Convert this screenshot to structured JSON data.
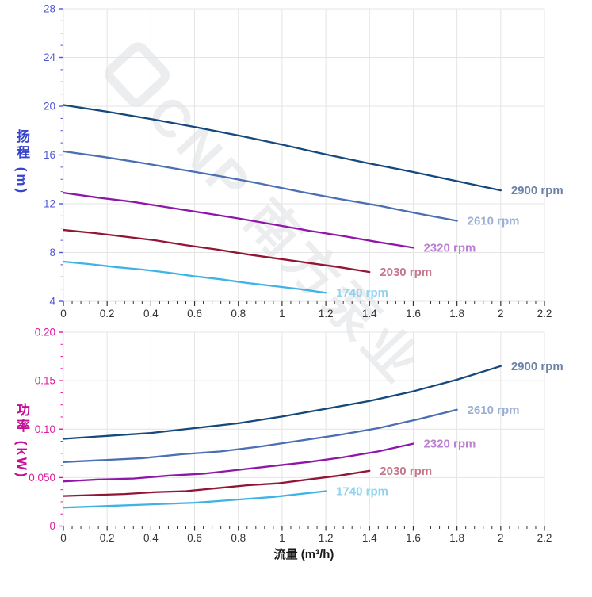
{
  "watermark": {
    "text": "CNP 南方泵业"
  },
  "x_axis_title": "流量 (m³/h)",
  "chart_data": [
    {
      "type": "line",
      "title": "pump head curves",
      "legend_position": "end-of-line labels",
      "grid": true,
      "x_axis": {
        "label": "流量 (m³/h)",
        "min": 0,
        "max": 2.2,
        "minor_step": 0.04,
        "tick_color": "#333333",
        "ticks": [
          [
            0,
            "0"
          ],
          [
            0.2,
            "0.2"
          ],
          [
            0.4,
            "0.4"
          ],
          [
            0.6,
            "0.6"
          ],
          [
            0.8,
            "0.8"
          ],
          [
            1,
            "1"
          ],
          [
            1.2,
            "1.2"
          ],
          [
            1.4,
            "1.4"
          ],
          [
            1.6,
            "1.6"
          ],
          [
            1.8,
            "1.8"
          ],
          [
            2,
            "2"
          ],
          [
            2.2,
            "2.2"
          ]
        ]
      },
      "y_axis": {
        "label": "扬程 (m)",
        "min": 4,
        "max": 28,
        "minor_step": 1,
        "label_color": "#3744cc",
        "tick_color": "#5056d6",
        "ticks": [
          [
            4,
            "4"
          ],
          [
            8,
            "8"
          ],
          [
            12,
            "12"
          ],
          [
            16,
            "16"
          ],
          [
            20,
            "20"
          ],
          [
            24,
            "24"
          ],
          [
            28,
            "28"
          ]
        ]
      },
      "series": [
        {
          "name": "2900 rpm",
          "color": "#16497b",
          "label_color": "#6a82a8",
          "x": [
            0,
            0.2,
            0.4,
            0.6,
            0.8,
            1.0,
            1.2,
            1.4,
            1.6,
            1.8,
            2.0
          ],
          "y": [
            20.1,
            19.55,
            18.95,
            18.3,
            17.6,
            16.85,
            16.05,
            15.3,
            14.6,
            13.85,
            13.1
          ]
        },
        {
          "name": "2610 rpm",
          "color": "#4a6fb2",
          "label_color": "#9cb0d4",
          "x": [
            0,
            0.18,
            0.36,
            0.54,
            0.72,
            0.9,
            1.08,
            1.26,
            1.44,
            1.62,
            1.8
          ],
          "y": [
            16.3,
            15.85,
            15.35,
            14.8,
            14.25,
            13.65,
            13.0,
            12.4,
            11.85,
            11.2,
            10.6
          ]
        },
        {
          "name": "2320 rpm",
          "color": "#8e17aa",
          "label_color": "#bb7fd2",
          "x": [
            0,
            0.16,
            0.32,
            0.48,
            0.64,
            0.8,
            0.96,
            1.12,
            1.28,
            1.44,
            1.6
          ],
          "y": [
            12.9,
            12.5,
            12.15,
            11.7,
            11.25,
            10.8,
            10.3,
            9.8,
            9.35,
            8.85,
            8.4
          ]
        },
        {
          "name": "2030 rpm",
          "color": "#931536",
          "label_color": "#c5788c",
          "x": [
            0,
            0.14,
            0.28,
            0.42,
            0.56,
            0.7,
            0.84,
            0.98,
            1.12,
            1.26,
            1.4
          ],
          "y": [
            9.85,
            9.6,
            9.3,
            9.0,
            8.6,
            8.25,
            7.85,
            7.5,
            7.15,
            6.8,
            6.4
          ]
        },
        {
          "name": "1740 rpm",
          "color": "#40b3e6",
          "label_color": "#8ed3f2",
          "x": [
            0,
            0.12,
            0.24,
            0.36,
            0.48,
            0.6,
            0.72,
            0.84,
            0.96,
            1.08,
            1.2
          ],
          "y": [
            7.25,
            7.05,
            6.8,
            6.6,
            6.35,
            6.05,
            5.8,
            5.5,
            5.25,
            5.0,
            4.7
          ]
        }
      ]
    },
    {
      "type": "line",
      "title": "pump power curves",
      "legend_position": "end-of-line labels",
      "grid": true,
      "x_axis": {
        "label": "流量 (m³/h)",
        "min": 0,
        "max": 2.2,
        "minor_step": 0.04,
        "tick_color": "#333333",
        "ticks": [
          [
            0,
            "0"
          ],
          [
            0.2,
            "0.2"
          ],
          [
            0.4,
            "0.4"
          ],
          [
            0.6,
            "0.6"
          ],
          [
            0.8,
            "0.8"
          ],
          [
            1,
            "1"
          ],
          [
            1.2,
            "1.2"
          ],
          [
            1.4,
            "1.4"
          ],
          [
            1.6,
            "1.6"
          ],
          [
            1.8,
            "1.8"
          ],
          [
            2,
            "2"
          ],
          [
            2.2,
            "2.2"
          ]
        ]
      },
      "y_axis": {
        "label": "功率 (kW)",
        "min": 0,
        "max": 0.2,
        "minor_step": 0.0125,
        "label_color": "#c50d96",
        "tick_color": "#e01aa0",
        "ticks": [
          [
            0,
            "0"
          ],
          [
            0.05,
            "0.050"
          ],
          [
            0.1,
            "0.10"
          ],
          [
            0.15,
            "0.15"
          ],
          [
            0.2,
            "0.20"
          ]
        ]
      },
      "series": [
        {
          "name": "2900 rpm",
          "color": "#16497b",
          "label_color": "#6a82a8",
          "x": [
            0,
            0.2,
            0.4,
            0.6,
            0.8,
            1.0,
            1.2,
            1.4,
            1.6,
            1.8,
            2.0
          ],
          "y": [
            0.09,
            0.093,
            0.096,
            0.101,
            0.106,
            0.113,
            0.121,
            0.129,
            0.139,
            0.151,
            0.165
          ]
        },
        {
          "name": "2610 rpm",
          "color": "#4a6fb2",
          "label_color": "#9cb0d4",
          "x": [
            0,
            0.18,
            0.36,
            0.54,
            0.72,
            0.9,
            1.08,
            1.26,
            1.44,
            1.62,
            1.8
          ],
          "y": [
            0.066,
            0.068,
            0.07,
            0.074,
            0.077,
            0.082,
            0.088,
            0.094,
            0.101,
            0.11,
            0.12
          ]
        },
        {
          "name": "2320 rpm",
          "color": "#8e17aa",
          "label_color": "#bb7fd2",
          "x": [
            0,
            0.16,
            0.32,
            0.48,
            0.64,
            0.8,
            0.96,
            1.12,
            1.28,
            1.44,
            1.6
          ],
          "y": [
            0.046,
            0.048,
            0.049,
            0.052,
            0.054,
            0.058,
            0.062,
            0.066,
            0.071,
            0.077,
            0.085
          ]
        },
        {
          "name": "2030 rpm",
          "color": "#931536",
          "label_color": "#c5788c",
          "x": [
            0,
            0.14,
            0.28,
            0.42,
            0.56,
            0.7,
            0.84,
            0.98,
            1.12,
            1.26,
            1.4
          ],
          "y": [
            0.031,
            0.032,
            0.033,
            0.035,
            0.036,
            0.039,
            0.042,
            0.044,
            0.048,
            0.052,
            0.057
          ]
        },
        {
          "name": "1740 rpm",
          "color": "#40b3e6",
          "label_color": "#8ed3f2",
          "x": [
            0,
            0.12,
            0.24,
            0.36,
            0.48,
            0.6,
            0.72,
            0.84,
            0.96,
            1.08,
            1.2
          ],
          "y": [
            0.019,
            0.02,
            0.021,
            0.022,
            0.023,
            0.024,
            0.026,
            0.028,
            0.03,
            0.033,
            0.036
          ]
        }
      ]
    }
  ]
}
